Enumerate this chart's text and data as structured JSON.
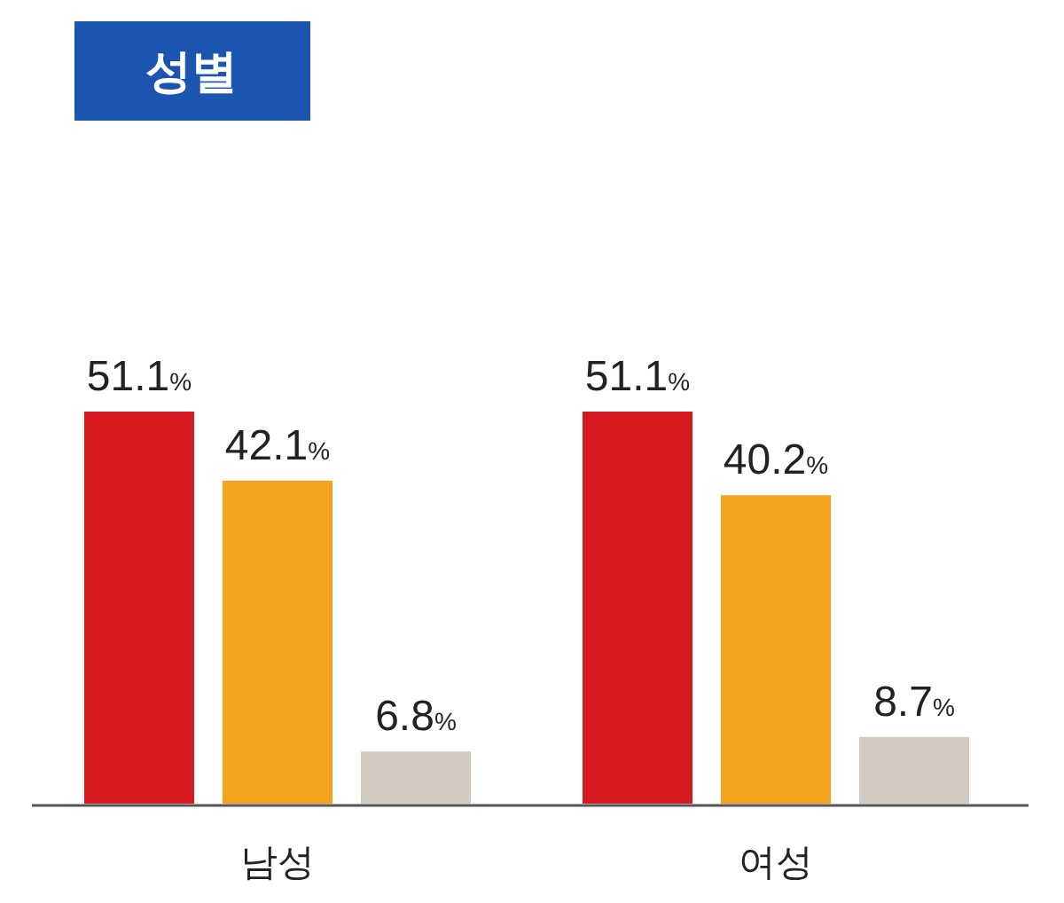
{
  "chart_data": {
    "type": "bar",
    "title": "성별",
    "categories": [
      "남성",
      "여성"
    ],
    "series": [
      {
        "color": "#d71920",
        "values": [
          51.1,
          51.1
        ],
        "value_labels": [
          "51.1%",
          "51.1%"
        ]
      },
      {
        "color": "#f5a31c",
        "values": [
          42.1,
          40.2
        ],
        "value_labels": [
          "42.1%",
          "40.2%"
        ]
      },
      {
        "color": "#d3cbc2",
        "values": [
          6.8,
          8.7
        ],
        "value_labels": [
          "6.8%",
          "8.7%"
        ]
      }
    ]
  }
}
